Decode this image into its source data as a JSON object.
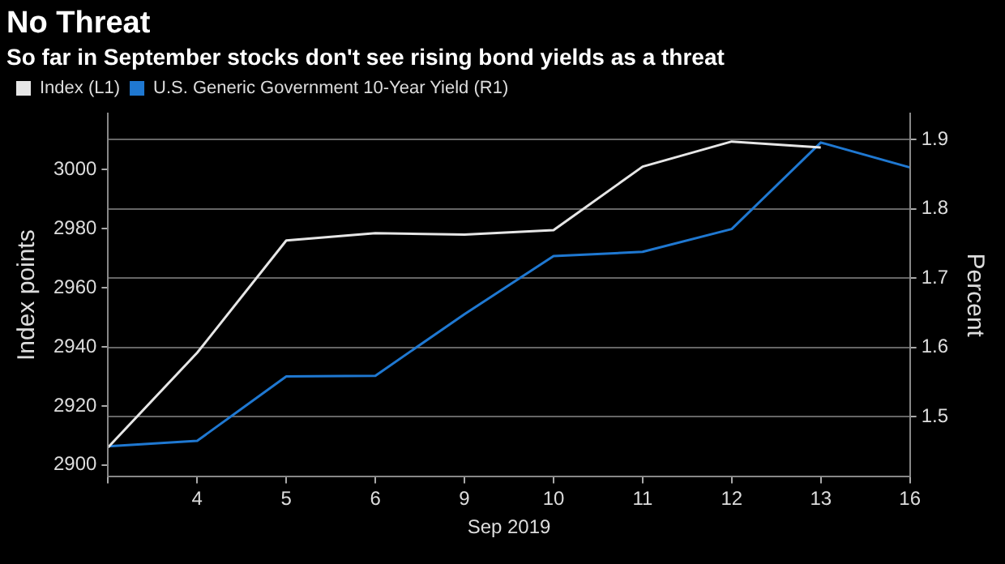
{
  "chart_data": {
    "type": "line",
    "title": "No Threat",
    "subtitle": "So far in September stocks don't see rising bond yields as a threat",
    "xlabel": "Sep 2019",
    "ylabel": "Index points",
    "y2label": "Percent",
    "categories": [
      null,
      "4",
      "5",
      "6",
      "9",
      "10",
      "11",
      "12",
      "13",
      "16"
    ],
    "series": [
      {
        "name": "Index (L1)",
        "color": "#e6e6e6",
        "values": [
          2906,
          2938,
          2976,
          2978.5,
          2978,
          2979.5,
          3001,
          3009.5,
          3007.5,
          null
        ]
      },
      {
        "name": "U.S. Generic Government 10-Year Yield (R1)",
        "color": "#1f78d1",
        "axis": "y2",
        "values": [
          1.457,
          1.465,
          1.558,
          1.559,
          1.648,
          1.732,
          1.738,
          1.771,
          1.896,
          1.86
        ]
      }
    ],
    "ylim": [
      2896,
      3019
    ],
    "yticks": [
      2900,
      2920,
      2940,
      2960,
      2980,
      3000
    ],
    "y2lim": [
      1.413,
      1.938
    ],
    "y2ticks": [
      1.5,
      1.6,
      1.7,
      1.8,
      1.9
    ],
    "grid": "y",
    "legend": "top left",
    "marker": "none",
    "line_style": "solid"
  }
}
